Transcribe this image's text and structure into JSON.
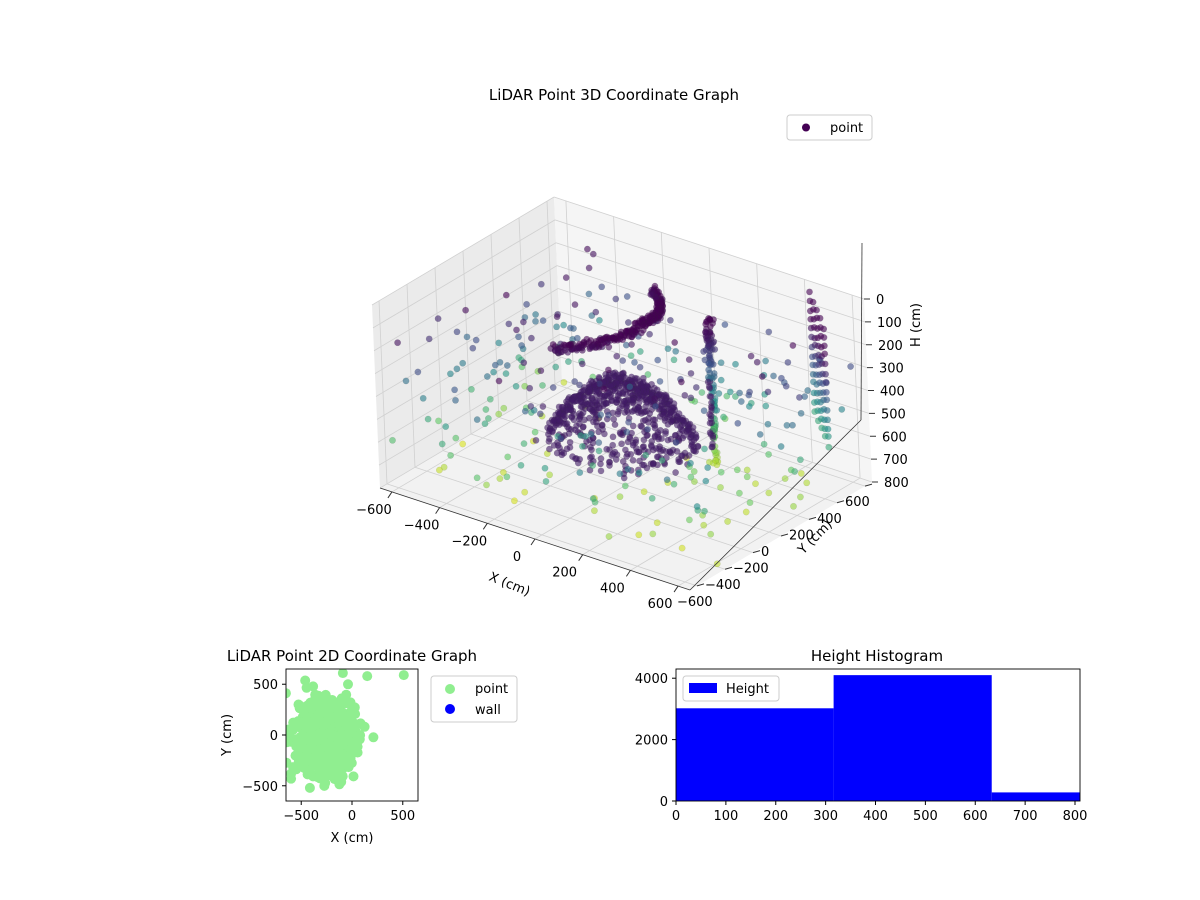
{
  "colors": {
    "viridis_dark": "#440154",
    "viridis_light": "#dde318",
    "point_2d": "#90ee90",
    "wall_2d": "#0000ff",
    "histogram": "#0000ff",
    "pane": "#f2f2f2",
    "grid": "#d0d0d0"
  },
  "chart_data": [
    {
      "type": "scatter",
      "projection": "3d",
      "title": "LiDAR Point 3D Coordinate Graph",
      "xlabel": "X (cm)",
      "ylabel": "Y (cm)",
      "zlabel": "H (cm)",
      "xlim": [
        -650,
        650
      ],
      "ylim": [
        -650,
        650
      ],
      "zlim": [
        0,
        800
      ],
      "z_inverted": true,
      "xticks": [
        -600,
        -400,
        -200,
        0,
        200,
        400,
        600
      ],
      "yticks": [
        -600,
        -400,
        -200,
        0,
        200,
        400,
        600
      ],
      "zticks": [
        0,
        100,
        200,
        300,
        400,
        500,
        600,
        700,
        800
      ],
      "colormap": "viridis",
      "legend": {
        "entries": [
          "point"
        ],
        "placement": "top-right"
      },
      "grid": true
    },
    {
      "type": "scatter",
      "title": "LiDAR Point 2D Coordinate Graph",
      "xlabel": "X (cm)",
      "ylabel": "Y (cm)",
      "xlim": [
        -650,
        650
      ],
      "ylim": [
        -650,
        650
      ],
      "xticks": [
        -500,
        0,
        500
      ],
      "yticks": [
        -500,
        0,
        500
      ],
      "series": [
        {
          "name": "point",
          "color": "#90ee90"
        },
        {
          "name": "wall",
          "color": "#0000ff"
        }
      ],
      "legend": {
        "placement": "outside-right"
      },
      "grid": false
    },
    {
      "type": "bar",
      "subtype": "histogram",
      "title": "Height Histogram",
      "bins": [
        {
          "start": 0,
          "end": 316,
          "count": 3020
        },
        {
          "start": 316,
          "end": 633,
          "count": 4100
        },
        {
          "start": 633,
          "end": 810,
          "count": 280
        }
      ],
      "xlim": [
        0,
        810
      ],
      "ylim": [
        0,
        4300
      ],
      "xticks": [
        0,
        100,
        200,
        300,
        400,
        500,
        600,
        700,
        800
      ],
      "yticks": [
        0,
        2000,
        4000
      ],
      "series": [
        {
          "name": "Height",
          "color": "#0000ff"
        }
      ],
      "legend": {
        "placement": "top-left"
      },
      "grid": false
    }
  ]
}
